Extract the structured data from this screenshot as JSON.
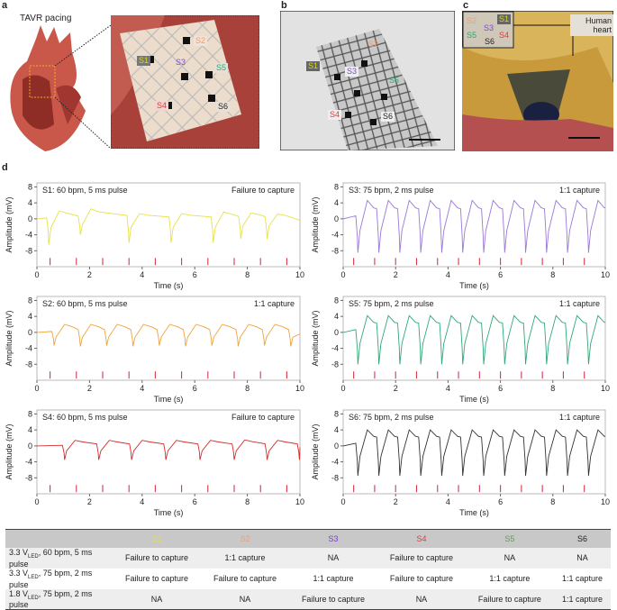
{
  "panels": {
    "a": {
      "letter": "a",
      "title": "TAVR pacing",
      "tags": [
        "S1",
        "S2",
        "S3",
        "S4",
        "S5",
        "S6"
      ]
    },
    "b": {
      "letter": "b",
      "tags": [
        "S1",
        "S2",
        "S3",
        "S4",
        "S5",
        "S6"
      ]
    },
    "c": {
      "letter": "c",
      "tags": [
        "S1",
        "S2",
        "S3",
        "S4",
        "S5",
        "S6"
      ],
      "caption": "Human heart"
    },
    "d": {
      "letter": "d"
    }
  },
  "colors": {
    "S1": "#d6d62a",
    "S2": "#f0a060",
    "S3": "#8a5fd0",
    "S4": "#e03c3c",
    "S5": "#2fae74",
    "S6": "#222222",
    "pacing": "#d9344a"
  },
  "chart_data": [
    {
      "type": "line",
      "id": "S1",
      "title": "S1: 60 bpm, 5 ms pulse",
      "status": "Failure to capture",
      "color": "#e6e24a",
      "xlabel": "Time (s)",
      "ylabel": "Amplitude (mV)",
      "xlim": [
        0,
        10
      ],
      "ylim": [
        -12,
        9
      ],
      "xticks": [
        0,
        2,
        4,
        6,
        8,
        10
      ],
      "yticks": [
        8,
        4,
        0,
        -4,
        -8
      ],
      "pacing_times": [
        0.5,
        1.5,
        2.5,
        3.5,
        4.5,
        5.5,
        6.5,
        7.5,
        8.5,
        9.5
      ],
      "beat_times": [
        0.45,
        1.65,
        3.5,
        5.1,
        6.7,
        7.75,
        8.75
      ],
      "trough_mV": [
        -6.5,
        -4,
        -6,
        -6,
        -6,
        -5,
        -5
      ],
      "peak_mV": [
        2,
        2.5,
        1.3,
        1.3,
        1.7,
        1.5,
        1.2
      ]
    },
    {
      "type": "line",
      "id": "S3",
      "title": "S3: 75 bpm, 2 ms pulse",
      "status": "1:1 capture",
      "color": "#9a78d8",
      "xlabel": "Time (s)",
      "ylabel": "Amplitude (mV)",
      "xlim": [
        0,
        10
      ],
      "ylim": [
        -12,
        9
      ],
      "xticks": [
        0,
        2,
        4,
        6,
        8,
        10
      ],
      "yticks": [
        8,
        4,
        0,
        -4,
        -8
      ],
      "pacing_times": [
        0.4,
        1.2,
        2.0,
        2.8,
        3.6,
        4.4,
        5.2,
        6.0,
        6.8,
        7.6,
        8.4,
        9.2
      ],
      "beat_times": [
        0.56,
        1.36,
        2.16,
        2.96,
        3.76,
        4.56,
        5.36,
        6.16,
        6.96,
        7.76,
        8.56,
        9.36
      ],
      "trough_mV": [
        -8.5,
        -8.5,
        -8.5,
        -8.5,
        -8.5,
        -8.5,
        -8.5,
        -8.5,
        -8.5,
        -8.5,
        -8.5,
        -8.5
      ],
      "peak_mV": [
        4.6,
        4.6,
        4.6,
        4.6,
        4.6,
        4.6,
        4.6,
        4.6,
        4.6,
        4.6,
        4.6,
        4.6
      ]
    },
    {
      "type": "line",
      "id": "S2",
      "title": "S2: 60 bpm, 5 ms pulse",
      "status": "1:1 capture",
      "color": "#eea33a",
      "xlabel": "Time (s)",
      "ylabel": "Amplitude (mV)",
      "xlim": [
        0,
        10
      ],
      "ylim": [
        -12,
        9
      ],
      "xticks": [
        0,
        2,
        4,
        6,
        8,
        10
      ],
      "yticks": [
        8,
        4,
        0,
        -4,
        -8
      ],
      "pacing_times": [
        0.5,
        1.5,
        2.5,
        3.5,
        4.5,
        5.5,
        6.5,
        7.5,
        8.5,
        9.5
      ],
      "beat_times": [
        0.65,
        1.65,
        2.65,
        3.65,
        4.65,
        5.65,
        6.65,
        7.65,
        8.65,
        9.65
      ],
      "trough_mV": [
        -3.3,
        -3.5,
        -3.3,
        -3.5,
        -3.3,
        -3.5,
        -3.3,
        -3.5,
        -3.3,
        -3.5
      ],
      "peak_mV": [
        2,
        2,
        2,
        2,
        2,
        2,
        2,
        2,
        2,
        2
      ]
    },
    {
      "type": "line",
      "id": "S5",
      "title": "S5: 75 bpm, 2 ms pulse",
      "status": "1:1 capture",
      "color": "#2fa878",
      "xlabel": "Time (s)",
      "ylabel": "Amplitude (mV)",
      "xlim": [
        0,
        10
      ],
      "ylim": [
        -12,
        9
      ],
      "xticks": [
        0,
        2,
        4,
        6,
        8,
        10
      ],
      "yticks": [
        8,
        4,
        0,
        -4,
        -8
      ],
      "pacing_times": [
        0.4,
        1.2,
        2.0,
        2.8,
        3.6,
        4.4,
        5.2,
        6.0,
        6.8,
        7.6,
        8.4,
        9.2
      ],
      "beat_times": [
        0.56,
        1.36,
        2.16,
        2.96,
        3.76,
        4.56,
        5.36,
        6.16,
        6.96,
        7.76,
        8.56,
        9.36
      ],
      "trough_mV": [
        -8,
        -8,
        -8,
        -8,
        -8,
        -8,
        -8,
        -8,
        -8,
        -8,
        -8,
        -8
      ],
      "peak_mV": [
        4.2,
        4.2,
        4.2,
        4.2,
        4.2,
        4.2,
        4.2,
        4.2,
        4.2,
        4.2,
        4.2,
        4.2
      ]
    },
    {
      "type": "line",
      "id": "S4",
      "title": "S4: 60 bpm, 5 ms pulse",
      "status": "Failure to capture",
      "color": "#d42a2a",
      "xlabel": "Time (s)",
      "ylabel": "Amplitude (mV)",
      "xlim": [
        0,
        10
      ],
      "ylim": [
        -12,
        9
      ],
      "xticks": [
        0,
        2,
        4,
        6,
        8,
        10
      ],
      "yticks": [
        8,
        4,
        0,
        -4,
        -8
      ],
      "pacing_times": [
        0.5,
        1.5,
        2.5,
        3.5,
        4.5,
        5.5,
        6.5,
        7.5,
        8.5,
        9.5
      ],
      "beat_times": [
        1.05,
        2.35,
        3.6,
        4.9,
        6.2,
        7.5,
        8.75,
        9.98
      ],
      "trough_mV": [
        -3.5,
        -3.5,
        -3.5,
        -3.5,
        -3.5,
        -3.5,
        -3.5,
        -3.5
      ],
      "peak_mV": [
        1.4,
        1.4,
        1.4,
        1.4,
        1.4,
        1.5,
        1.4,
        1.4
      ]
    },
    {
      "type": "line",
      "id": "S6",
      "title": "S6: 75 bpm, 2 ms pulse",
      "status": "1:1 capture",
      "color": "#333333",
      "xlabel": "Time (s)",
      "ylabel": "Amplitude (mV)",
      "xlim": [
        0,
        10
      ],
      "ylim": [
        -12,
        9
      ],
      "xticks": [
        0,
        2,
        4,
        6,
        8,
        10
      ],
      "yticks": [
        8,
        4,
        0,
        -4,
        -8
      ],
      "pacing_times": [
        0.4,
        1.2,
        2.0,
        2.8,
        3.6,
        4.4,
        5.2,
        6.0,
        6.8,
        7.6,
        8.4,
        9.2
      ],
      "beat_times": [
        0.56,
        1.36,
        2.16,
        2.96,
        3.76,
        4.56,
        5.36,
        6.16,
        6.96,
        7.76,
        8.56,
        9.36
      ],
      "trough_mV": [
        -7.5,
        -7.5,
        -7.5,
        -7.5,
        -7.5,
        -7.5,
        -7.5,
        -7.5,
        -7.5,
        -7.5,
        -7.5,
        -7.5
      ],
      "peak_mV": [
        4,
        4,
        4,
        4,
        4,
        4,
        4,
        4,
        4,
        4,
        4,
        4
      ]
    }
  ],
  "table": {
    "columns": [
      "",
      "S1",
      "S2",
      "S3",
      "S4",
      "S5",
      "S6"
    ],
    "rows": [
      {
        "v": "3.3 V",
        "sub": "LED",
        "rest": ", 60 bpm, 5 ms pulse",
        "cells": [
          "Failure to capture",
          "1:1 capture",
          "NA",
          "Failure to capture",
          "NA",
          "NA"
        ]
      },
      {
        "v": "3.3 V",
        "sub": "LED",
        "rest": ", 75 bpm, 2 ms pulse",
        "cells": [
          "Failure to capture",
          "Failure to capture",
          "1:1 capture",
          "Failure to capture",
          "1:1 capture",
          "1:1 capture"
        ]
      },
      {
        "v": "1.8 V",
        "sub": "LED",
        "rest": ", 75 bpm, 2 ms pulse",
        "cells": [
          "NA",
          "NA",
          "Failure to capture",
          "NA",
          "Failure to capture",
          "1:1 capture"
        ]
      }
    ]
  }
}
